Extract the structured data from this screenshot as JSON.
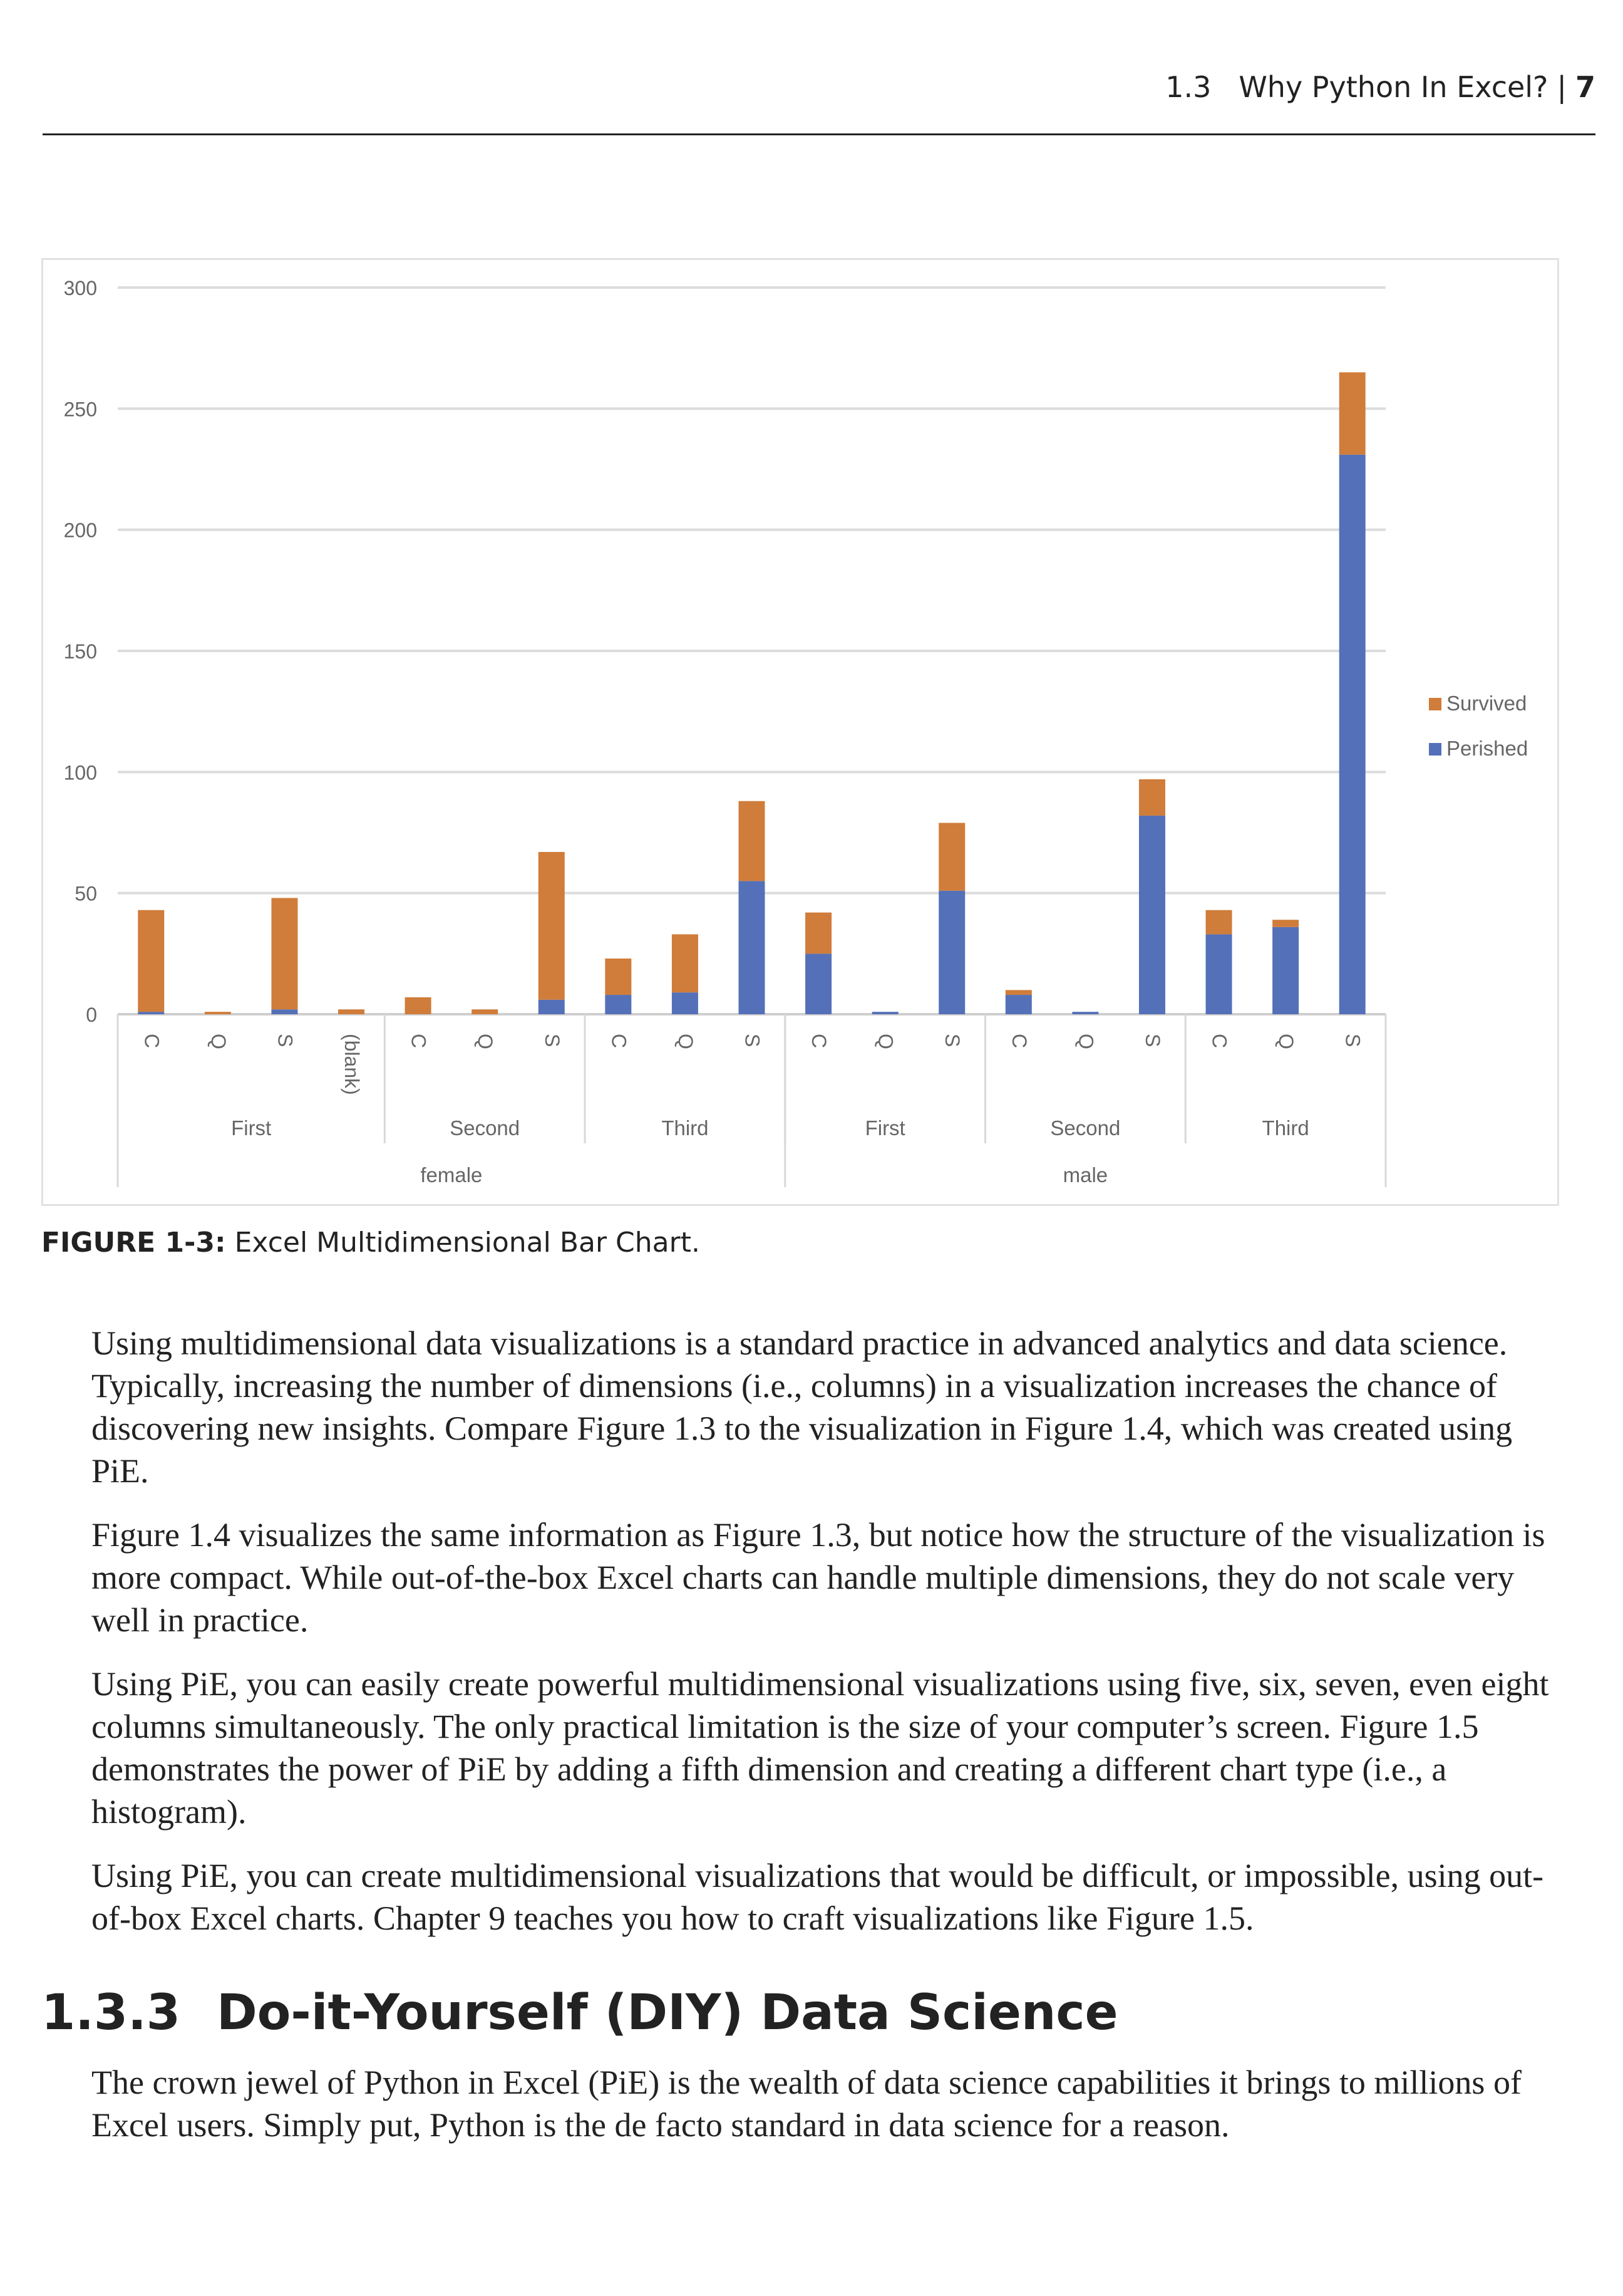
{
  "header": {
    "section": "1.3",
    "title": "Why Python In Excel?",
    "separator": "|",
    "page": "7"
  },
  "chart_data": {
    "type": "bar",
    "stacked": true,
    "title": "",
    "ylim": [
      0,
      300
    ],
    "yticks": [
      0,
      50,
      100,
      150,
      200,
      250,
      300
    ],
    "grid": true,
    "legend_position": "right",
    "categories": [
      "C",
      "Q",
      "S",
      "(blank)",
      "C",
      "Q",
      "S",
      "C",
      "Q",
      "S",
      "C",
      "Q",
      "S",
      "C",
      "Q",
      "S",
      "C",
      "Q",
      "S"
    ],
    "class_groups": [
      {
        "label": "First",
        "count": 4
      },
      {
        "label": "Second",
        "count": 3
      },
      {
        "label": "Third",
        "count": 3
      },
      {
        "label": "First",
        "count": 3
      },
      {
        "label": "Second",
        "count": 3
      },
      {
        "label": "Third",
        "count": 3
      }
    ],
    "sex_groups": [
      {
        "label": "female",
        "count": 10
      },
      {
        "label": "male",
        "count": 9
      }
    ],
    "series": [
      {
        "name": "Perished",
        "color": "#5470b8",
        "values": [
          1,
          0,
          2,
          0,
          0,
          0,
          6,
          8,
          9,
          55,
          25,
          1,
          51,
          8,
          1,
          82,
          33,
          36,
          231
        ]
      },
      {
        "name": "Survived",
        "color": "#d07c3a",
        "values": [
          42,
          1,
          46,
          2,
          7,
          2,
          61,
          15,
          24,
          33,
          17,
          0,
          28,
          2,
          0,
          15,
          10,
          3,
          34
        ]
      }
    ],
    "legend": [
      "Survived",
      "Perished"
    ]
  },
  "caption": {
    "label": "FIGURE 1-3:",
    "text": "Excel Multidimensional Bar Chart."
  },
  "paragraphs": [
    "Using multidimensional data visualizations is a standard practice in advanced analytics and data science. Typically, increasing the number of dimensions (i.e., columns) in a visualization increases the chance of discovering new insights. Compare Figure 1.3 to the visualization in Figure 1.4, which was created using PiE.",
    "Figure 1.4 visualizes the same information as Figure 1.3, but notice how the structure of the visualiza­tion is more compact. While out-of-the-box Excel charts can handle multiple dimensions, they do not scale very well in practice.",
    "Using PiE, you can easily create powerful multidimensional visualizations using five, six, seven, even eight columns simultaneously. The only practical limitation is the size of your computer’s screen. Figure 1.5 demonstrates the power of PiE by adding a fifth dimension and creating a different chart type (i.e., a histogram).",
    "Using PiE, you can create multidimensional visualizations that would be difficult, or impossible, using out-of-box Excel charts. Chapter 9 teaches you how to craft visualizations like Figure 1.5."
  ],
  "section": {
    "number": "1.3.3",
    "title": "Do-it-Yourself (DIY) Data Science"
  },
  "section_paragraphs": [
    "The crown jewel of Python in Excel (PiE) is the wealth of data science capabilities it brings to millions of Excel users. Simply put, Python is the de facto standard in data science for a reason."
  ]
}
